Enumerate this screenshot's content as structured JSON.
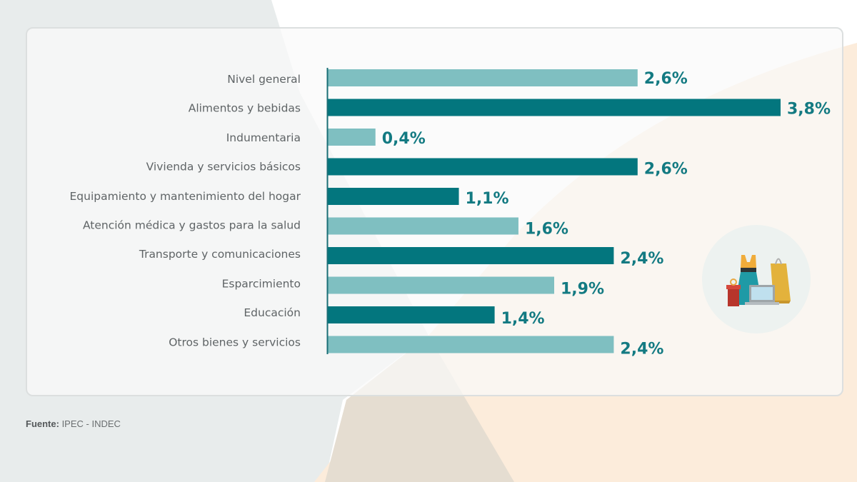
{
  "chart_data": {
    "type": "bar",
    "orientation": "horizontal",
    "categories": [
      "Nivel general",
      "Alimentos y bebidas",
      "Indumentaria",
      "Vivienda y servicios básicos",
      "Equipamiento y mantenimiento del hogar",
      "Atención médica y gastos para la salud",
      "Transporte y comunicaciones",
      "Esparcimiento",
      "Educación",
      "Otros bienes y servicios"
    ],
    "values": [
      2.6,
      3.8,
      0.4,
      2.6,
      1.1,
      1.6,
      2.4,
      1.9,
      1.4,
      2.4
    ],
    "value_labels": [
      "2,6%",
      "3,8%",
      "0,4%",
      "2,6%",
      "1,1%",
      "1,6%",
      "2,4%",
      "1,9%",
      "1,4%",
      "2,4%"
    ],
    "bar_colors": [
      "#7fbfc1",
      "#03767e",
      "#7fbfc1",
      "#03767e",
      "#03767e",
      "#7fbfc1",
      "#03767e",
      "#7fbfc1",
      "#03767e",
      "#7fbfc1"
    ],
    "unit": "%",
    "xlim": [
      0,
      3.8
    ],
    "grid": false,
    "title": "",
    "xlabel": "",
    "ylabel": ""
  },
  "colors": {
    "dark_bar": "#03767e",
    "light_bar": "#7fbfc1",
    "value_text": "#137a82",
    "axis": "#1a6f76"
  },
  "illustration": {
    "icon": "shopping-items-icon"
  },
  "footer": {
    "source_label": "Fuente:",
    "source_value": " IPEC - INDEC"
  }
}
